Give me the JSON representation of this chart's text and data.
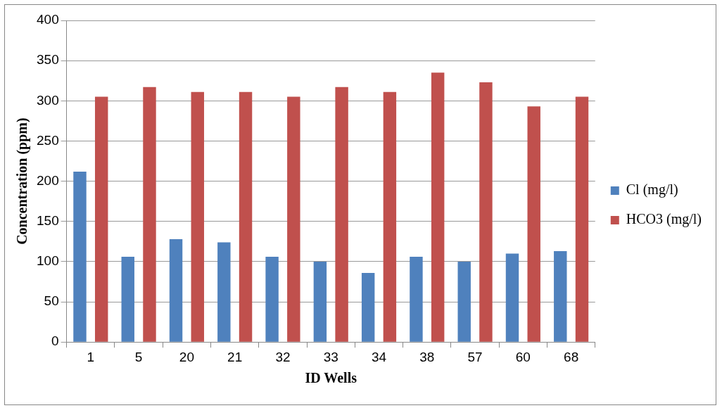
{
  "chart_data": {
    "type": "bar",
    "xlabel": "ID Wells",
    "ylabel": "Concentration (ppm)",
    "categories": [
      "1",
      "5",
      "20",
      "21",
      "32",
      "33",
      "34",
      "38",
      "57",
      "60",
      "68"
    ],
    "series": [
      {
        "name": "Cl (mg/l)",
        "color": "#4f81bd",
        "values": [
          212,
          106,
          128,
          124,
          106,
          100,
          86,
          106,
          100,
          110,
          113
        ]
      },
      {
        "name": "HCO3 (mg/l)",
        "color": "#c0504d",
        "values": [
          305,
          317,
          311,
          311,
          305,
          317,
          311,
          335,
          323,
          293,
          305
        ]
      }
    ],
    "ylim": [
      0,
      400
    ],
    "yticks": [
      0,
      50,
      100,
      150,
      200,
      250,
      300,
      350,
      400
    ],
    "grid": "y",
    "legend": "right"
  }
}
